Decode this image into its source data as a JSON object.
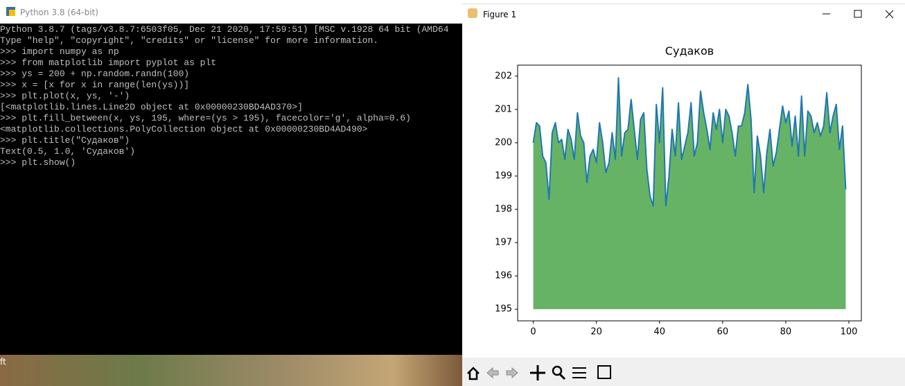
{
  "terminal": {
    "title": "Python 3.8 (64-bit)",
    "lines": [
      "Python 3.8.7 (tags/v3.8.7:6503f05, Dec 21 2020, 17:59:51) [MSC v.1928 64 bit (AMD64",
      "Type \"help\", \"copyright\", \"credits\" or \"license\" for more information.",
      ">>> import numpy as np",
      ">>> from matplotlib import pyplot as plt",
      ">>> ys = 200 + np.random.randn(100)",
      ">>> x = [x for x in range(len(ys))]",
      ">>> plt.plot(x, ys, '-')",
      "[<matplotlib.lines.Line2D object at 0x00000230BD4AD370>]",
      ">>> plt.fill_between(x, ys, 195, where=(ys > 195), facecolor='g', alpha=0.6)",
      "<matplotlib.collections.PolyCollection object at 0x00000230BD4AD490>",
      ">>> plt.title(\"Судаков\")",
      "Text(0.5, 1.0, 'Судаков')",
      ">>> plt.show()"
    ]
  },
  "desktop": {
    "label": "ft"
  },
  "figure": {
    "title": "Figure 1"
  },
  "chart_data": {
    "type": "area",
    "title": "Судаков",
    "x": [
      0,
      1,
      2,
      3,
      4,
      5,
      6,
      7,
      8,
      9,
      10,
      11,
      12,
      13,
      14,
      15,
      16,
      17,
      18,
      19,
      20,
      21,
      22,
      23,
      24,
      25,
      26,
      27,
      28,
      29,
      30,
      31,
      32,
      33,
      34,
      35,
      36,
      37,
      38,
      39,
      40,
      41,
      42,
      43,
      44,
      45,
      46,
      47,
      48,
      49,
      50,
      51,
      52,
      53,
      54,
      55,
      56,
      57,
      58,
      59,
      60,
      61,
      62,
      63,
      64,
      65,
      66,
      67,
      68,
      69,
      70,
      71,
      72,
      73,
      74,
      75,
      76,
      77,
      78,
      79,
      80,
      81,
      82,
      83,
      84,
      85,
      86,
      87,
      88,
      89,
      90,
      91,
      92,
      93,
      94,
      95,
      96,
      97,
      98,
      99
    ],
    "values": [
      200.0,
      200.6,
      200.5,
      199.6,
      199.4,
      198.3,
      200.3,
      200.6,
      200.0,
      200.1,
      199.5,
      200.4,
      200.1,
      199.5,
      200.9,
      200.2,
      200.0,
      198.8,
      199.6,
      199.8,
      199.4,
      200.6,
      200.0,
      199.1,
      199.4,
      200.3,
      199.5,
      201.95,
      199.6,
      200.3,
      200.4,
      201.3,
      200.4,
      199.5,
      200.7,
      200.9,
      199.2,
      198.4,
      198.1,
      201.15,
      200.0,
      201.65,
      198.1,
      199.0,
      200.4,
      199.6,
      201.2,
      199.5,
      199.9,
      200.3,
      201.2,
      199.6,
      200.0,
      201.55,
      200.9,
      200.4,
      199.8,
      200.9,
      200.4,
      201.0,
      200.0,
      201.0,
      200.8,
      200.3,
      199.6,
      200.5,
      200.5,
      200.9,
      201.75,
      200.7,
      198.5,
      200.2,
      199.6,
      198.5,
      199.7,
      200.4,
      199.3,
      199.7,
      200.4,
      201.1,
      200.6,
      200.95,
      199.9,
      200.8,
      199.6,
      201.4,
      199.6,
      200.95,
      200.8,
      200.3,
      200.6,
      200.2,
      200.5,
      201.5,
      200.3,
      200.8,
      201.15,
      199.8,
      200.5,
      198.6
    ],
    "fill_base": 195,
    "line_color": "#1f77b4",
    "fill_color": "#008000",
    "fill_alpha": 0.6,
    "xlim": [
      -4.95,
      103.95
    ],
    "xticks": [
      0,
      20,
      40,
      60,
      80,
      100
    ],
    "ylim": [
      194.65,
      202.33
    ],
    "yticks": [
      195,
      196,
      197,
      198,
      199,
      200,
      201,
      202
    ],
    "grid": false
  }
}
